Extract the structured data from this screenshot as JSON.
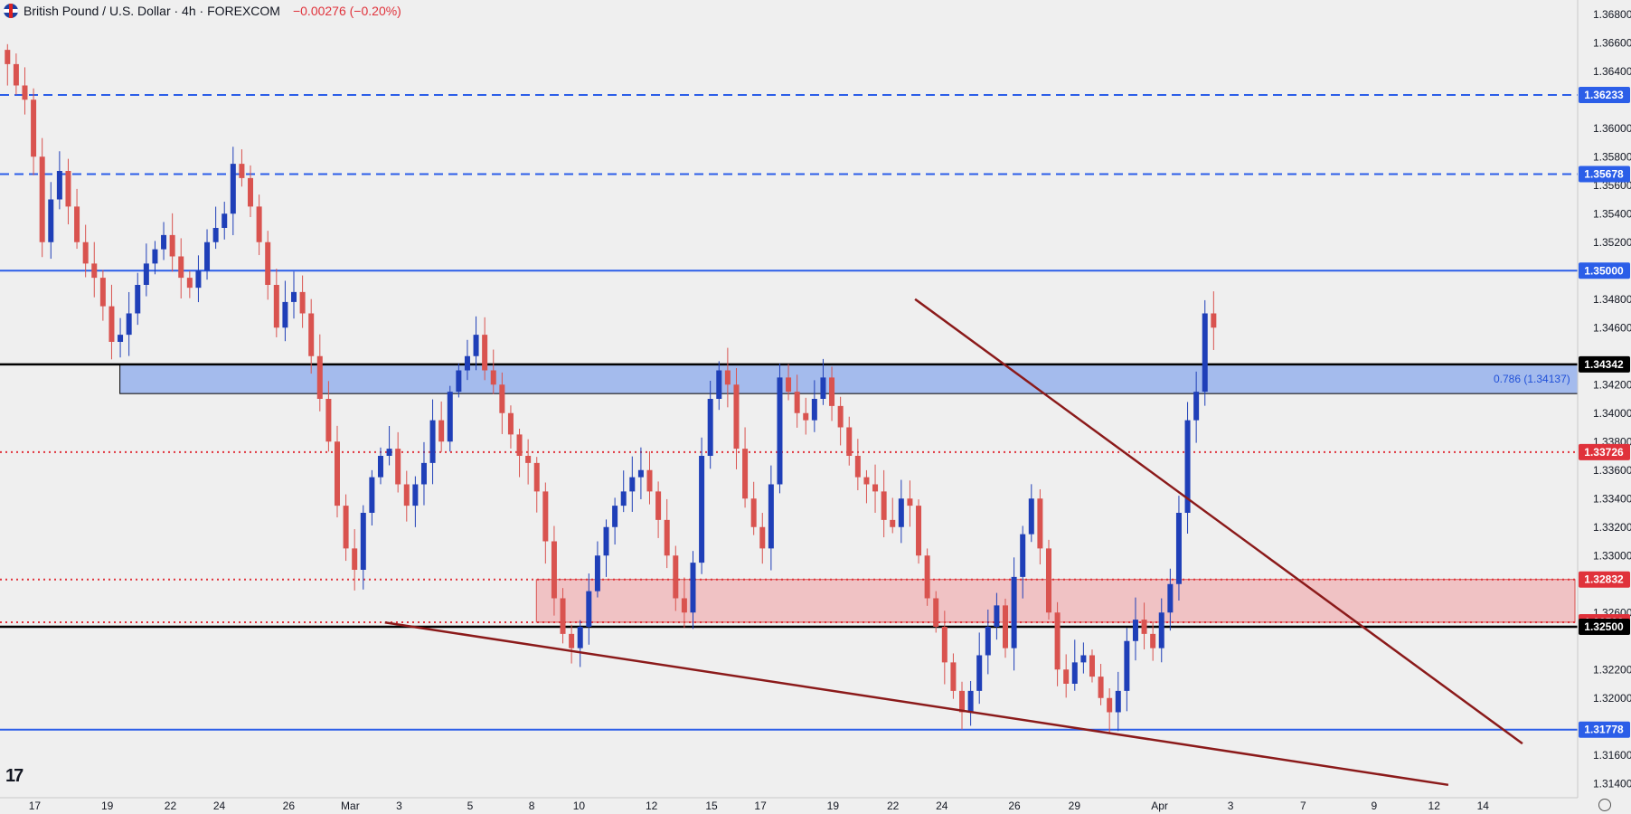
{
  "header": {
    "instrument": "British Pound / U.S. Dollar · 4h · FOREXCOM",
    "change": "−0.00276 (−0.20%)"
  },
  "fib_label": "0.786 (1.34137)",
  "logo": "17",
  "colors": {
    "bull": "#1f3fb8",
    "bear": "#d9534f",
    "trend": "#8b1a1a",
    "zone_blue": "#96b1ec",
    "zone_red": "#f0bcbf",
    "axis_red": "#e0323b",
    "axis_blue": "#2b5ee8"
  },
  "chart_data": {
    "type": "candlestick",
    "title": "British Pound / U.S. Dollar · 4h · FOREXCOM",
    "ylim": [
      1.313,
      1.369
    ],
    "y_ticks": [
      "1.36800",
      "1.36600",
      "1.36400",
      "1.36000",
      "1.35800",
      "1.35600",
      "1.35400",
      "1.35200",
      "1.34800",
      "1.34600",
      "1.34200",
      "1.34000",
      "1.33800",
      "1.33600",
      "1.33400",
      "1.33200",
      "1.33000",
      "1.32600",
      "1.32200",
      "1.32000",
      "1.31600",
      "1.31400"
    ],
    "x_ticks": [
      {
        "label": "17",
        "t": 0.022
      },
      {
        "label": "19",
        "t": 0.068
      },
      {
        "label": "22",
        "t": 0.108
      },
      {
        "label": "24",
        "t": 0.139
      },
      {
        "label": "26",
        "t": 0.183
      },
      {
        "label": "Mar",
        "t": 0.222
      },
      {
        "label": "3",
        "t": 0.253
      },
      {
        "label": "5",
        "t": 0.298
      },
      {
        "label": "8",
        "t": 0.337
      },
      {
        "label": "10",
        "t": 0.367
      },
      {
        "label": "12",
        "t": 0.413
      },
      {
        "label": "15",
        "t": 0.451
      },
      {
        "label": "17",
        "t": 0.482
      },
      {
        "label": "19",
        "t": 0.528
      },
      {
        "label": "22",
        "t": 0.566
      },
      {
        "label": "24",
        "t": 0.597
      },
      {
        "label": "26",
        "t": 0.643
      },
      {
        "label": "29",
        "t": 0.681
      },
      {
        "label": "Apr",
        "t": 0.735
      },
      {
        "label": "3",
        "t": 0.78
      },
      {
        "label": "7",
        "t": 0.826
      },
      {
        "label": "9",
        "t": 0.871
      },
      {
        "label": "12",
        "t": 0.909
      },
      {
        "label": "14",
        "t": 0.94
      }
    ],
    "price_path": [
      1.3655,
      1.3645,
      1.363,
      1.362,
      1.358,
      1.352,
      1.355,
      1.357,
      1.3545,
      1.352,
      1.3505,
      1.3495,
      1.3475,
      1.345,
      1.3455,
      1.347,
      1.349,
      1.3505,
      1.3515,
      1.3525,
      1.351,
      1.3495,
      1.3488,
      1.35,
      1.352,
      1.353,
      1.354,
      1.3575,
      1.3565,
      1.3545,
      1.352,
      1.349,
      1.346,
      1.3478,
      1.3485,
      1.347,
      1.344,
      1.341,
      1.338,
      1.3335,
      1.3305,
      1.329,
      1.333,
      1.3355,
      1.337,
      1.3375,
      1.335,
      1.3335,
      1.335,
      1.3365,
      1.3395,
      1.338,
      1.3415,
      1.343,
      1.344,
      1.3455,
      1.343,
      1.342,
      1.34,
      1.3385,
      1.337,
      1.3365,
      1.3345,
      1.331,
      1.327,
      1.3245,
      1.3235,
      1.325,
      1.3275,
      1.33,
      1.332,
      1.3335,
      1.3345,
      1.3355,
      1.336,
      1.3345,
      1.3325,
      1.33,
      1.327,
      1.326,
      1.3295,
      1.337,
      1.341,
      1.343,
      1.342,
      1.3375,
      1.334,
      1.332,
      1.3305,
      1.335,
      1.3425,
      1.3415,
      1.34,
      1.3395,
      1.341,
      1.3425,
      1.3405,
      1.339,
      1.337,
      1.3355,
      1.335,
      1.3345,
      1.3325,
      1.332,
      1.334,
      1.3335,
      1.33,
      1.327,
      1.325,
      1.3225,
      1.3205,
      1.319,
      1.3205,
      1.323,
      1.325,
      1.3265,
      1.3235,
      1.3285,
      1.3315,
      1.334,
      1.3305,
      1.326,
      1.322,
      1.321,
      1.3225,
      1.323,
      1.3215,
      1.32,
      1.319,
      1.3205,
      1.324,
      1.3255,
      1.3245,
      1.3235,
      1.326,
      1.328,
      1.333,
      1.3395,
      1.3415,
      1.347,
      1.346
    ],
    "levels": [
      {
        "value": 1.36233,
        "label": "1.36233",
        "style": "dashed",
        "color": "#2b5ee8"
      },
      {
        "value": 1.35678,
        "label": "1.35678",
        "style": "dashed",
        "color": "#2b5ee8"
      },
      {
        "value": 1.35,
        "label": "1.35000",
        "style": "solid",
        "color": "#2b5ee8"
      },
      {
        "value": 1.34342,
        "label": "1.34342",
        "style": "solid",
        "color": "#000000"
      },
      {
        "value": 1.33726,
        "label": "1.33726",
        "style": "dotted",
        "color": "#e0323b"
      },
      {
        "value": 1.32832,
        "label": "1.32832",
        "style": "dotted",
        "color": "#e0323b"
      },
      {
        "value": 1.32532,
        "label": "1.32532",
        "style": "dotted",
        "color": "#e0323b"
      },
      {
        "value": 1.325,
        "label": "1.32500",
        "style": "solid",
        "color": "#000000"
      },
      {
        "value": 1.31778,
        "label": "1.31778",
        "style": "solid",
        "color": "#2b5ee8"
      }
    ],
    "zones": [
      {
        "from": 1.34137,
        "to": 1.34342,
        "color": "blue",
        "t_start": 0.076
      },
      {
        "from": 1.32532,
        "to": 1.32832,
        "color": "red",
        "t_start": 0.34
      }
    ],
    "trendlines": [
      {
        "t1": 0.58,
        "p1": 1.348,
        "t2": 0.965,
        "p2": 1.3168
      },
      {
        "t1": 0.244,
        "p1": 1.3253,
        "t2": 0.918,
        "p2": 1.3139
      }
    ]
  }
}
